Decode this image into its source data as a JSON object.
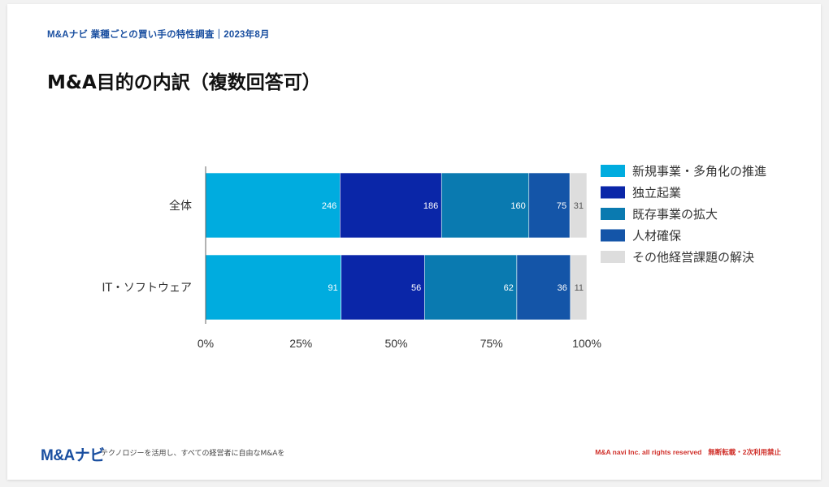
{
  "header": {
    "label": "M&Aナビ 業種ごとの買い手の特性調査｜2023年8月"
  },
  "page": {
    "title": "M&A目的の内訳（複数回答可）"
  },
  "chart_data": {
    "type": "bar",
    "orientation": "horizontal",
    "stacked": "percent",
    "categories": [
      "全体",
      "IT・ソフトウェア"
    ],
    "series": [
      {
        "name": "新規事業・多角化の推進",
        "values": [
          246,
          91
        ],
        "color": "#00acdf"
      },
      {
        "name": "独立起業",
        "values": [
          186,
          56
        ],
        "color": "#0a26a8"
      },
      {
        "name": "既存事業の拡大",
        "values": [
          160,
          62
        ],
        "color": "#0a7ab0"
      },
      {
        "name": "人材確保",
        "values": [
          75,
          36
        ],
        "color": "#1455a8"
      },
      {
        "name": "その他経営課題の解決",
        "values": [
          31,
          11
        ],
        "color": "#dddddd"
      }
    ],
    "xticks": [
      "0%",
      "25%",
      "50%",
      "75%",
      "100%"
    ],
    "xlim": [
      0,
      100
    ],
    "legend": "right",
    "label_colors": {
      "dark": "#ffffff",
      "light": "#555555"
    }
  },
  "footer": {
    "logo": "M&Aナビ",
    "tagline": "テクノロジーを活用し、すべての経営者に自由なM&Aを",
    "copyright": "M&A navi Inc. all rights reserved",
    "notice": "無断転載・2次利用禁止"
  }
}
